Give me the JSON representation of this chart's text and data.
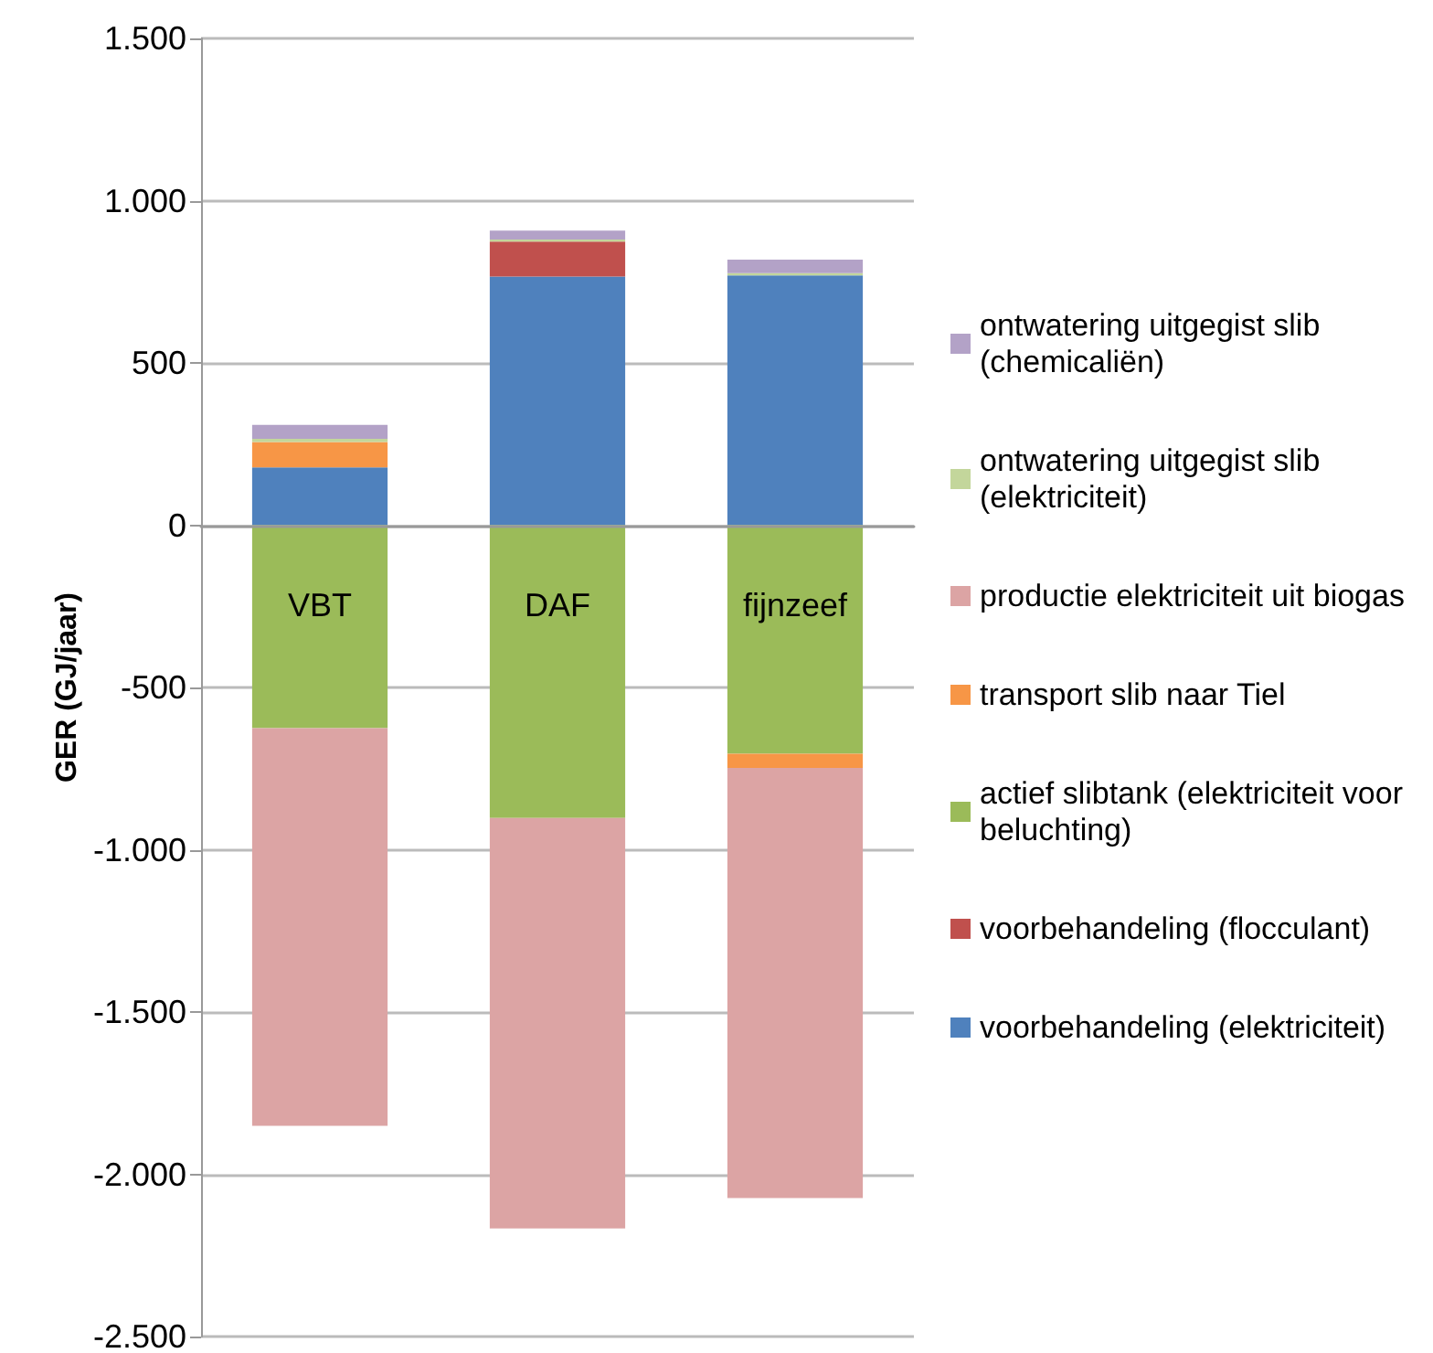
{
  "chart_data": {
    "type": "bar",
    "stacked": true,
    "ylabel": "GER (GJ/jaar)",
    "categories": [
      "VBT",
      "DAF",
      "fijnzeef"
    ],
    "series": [
      {
        "name": "voorbehandeling (elektriciteit)",
        "color": "#4f81bd",
        "values": [
          178,
          766,
          770
        ]
      },
      {
        "name": "voorbehandeling (flocculant)",
        "color": "#c0504d",
        "values": [
          null,
          108,
          null
        ]
      },
      {
        "name": "actief slibtank (elektriciteit voor beluchting)",
        "color": "#9bbb59",
        "values": [
          -625,
          -902,
          -704
        ]
      },
      {
        "name": "transport slib naar Tiel",
        "color": "#f79646",
        "values": [
          78,
          null,
          -44
        ]
      },
      {
        "name": "productie elektriciteit uit biogas",
        "color": "#dca4a4",
        "values": [
          -1226,
          -1265,
          -1325
        ]
      },
      {
        "name": "ontwatering uitgegist slib (elektriciteit)",
        "color": "#c3d69b",
        "values": [
          10,
          6,
          7
        ]
      },
      {
        "name": "ontwatering uitgegist slib (chemicaliën)",
        "color": "#b3a2c7",
        "values": [
          43,
          28,
          41
        ]
      }
    ],
    "ylim": [
      -2500,
      1500
    ],
    "yticks": [
      {
        "value": -2500,
        "label": "-2.500"
      },
      {
        "value": -2000,
        "label": "-2.000"
      },
      {
        "value": -1500,
        "label": "-1.500"
      },
      {
        "value": -1000,
        "label": "-1.000"
      },
      {
        "value": -500,
        "label": "-500"
      },
      {
        "value": 0,
        "label": "0"
      },
      {
        "value": 500,
        "label": "500"
      },
      {
        "value": 1000,
        "label": "1.000"
      },
      {
        "value": 1500,
        "label": "1.500"
      }
    ],
    "grid": "y",
    "legend": "right"
  }
}
